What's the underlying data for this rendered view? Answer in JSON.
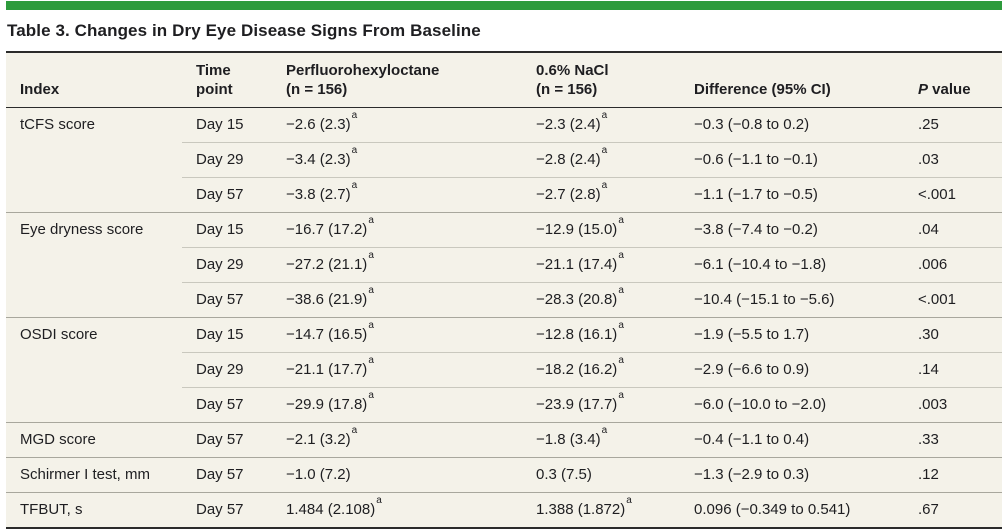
{
  "title": "Table 3. Changes in Dry Eye Disease Signs From Baseline",
  "columns": {
    "index": "Index",
    "time_line1": "Time",
    "time_line2": "point",
    "pfh_line1": "Perfluorohexyloctane",
    "pfh_line2": "(n = 156)",
    "nacl_line1": "0.6% NaCl",
    "nacl_line2": "(n = 156)",
    "difference": "Difference (95% CI)",
    "pvalue_italic": "P",
    "pvalue_rest": " value"
  },
  "rows": [
    {
      "index": "tCFS score",
      "time": "Day 15",
      "pfh": "−2.6 (2.3)",
      "pfh_sup": "a",
      "nacl": "−2.3 (2.4)",
      "nacl_sup": "a",
      "diff": "−0.3 (−0.8 to 0.2)",
      "p": ".25"
    },
    {
      "index": "",
      "time": "Day 29",
      "pfh": "−3.4 (2.3)",
      "pfh_sup": "a",
      "nacl": "−2.8 (2.4)",
      "nacl_sup": "a",
      "diff": "−0.6 (−1.1 to −0.1)",
      "p": ".03"
    },
    {
      "index": "",
      "time": "Day 57",
      "pfh": "−3.8 (2.7)",
      "pfh_sup": "a",
      "nacl": "−2.7 (2.8)",
      "nacl_sup": "a",
      "diff": "−1.1 (−1.7 to −0.5)",
      "p": "<.001"
    },
    {
      "index": "Eye dryness score",
      "time": "Day 15",
      "pfh": "−16.7 (17.2)",
      "pfh_sup": "a",
      "nacl": "−12.9 (15.0)",
      "nacl_sup": "a",
      "diff": "−3.8 (−7.4 to −0.2)",
      "p": ".04"
    },
    {
      "index": "",
      "time": "Day 29",
      "pfh": "−27.2 (21.1)",
      "pfh_sup": "a",
      "nacl": "−21.1 (17.4)",
      "nacl_sup": "a",
      "diff": "−6.1 (−10.4 to −1.8)",
      "p": ".006"
    },
    {
      "index": "",
      "time": "Day 57",
      "pfh": "−38.6 (21.9)",
      "pfh_sup": "a",
      "nacl": "−28.3 (20.8)",
      "nacl_sup": "a",
      "diff": "−10.4 (−15.1 to −5.6)",
      "p": "<.001"
    },
    {
      "index": "OSDI score",
      "time": "Day 15",
      "pfh": "−14.7 (16.5)",
      "pfh_sup": "a",
      "nacl": "−12.8 (16.1)",
      "nacl_sup": "a",
      "diff": "−1.9 (−5.5 to 1.7)",
      "p": ".30"
    },
    {
      "index": "",
      "time": "Day 29",
      "pfh": "−21.1 (17.7)",
      "pfh_sup": "a",
      "nacl": "−18.2 (16.2)",
      "nacl_sup": "a",
      "diff": "−2.9 (−6.6 to 0.9)",
      "p": ".14"
    },
    {
      "index": "",
      "time": "Day 57",
      "pfh": "−29.9 (17.8)",
      "pfh_sup": "a",
      "nacl": "−23.9 (17.7)",
      "nacl_sup": "a",
      "diff": "−6.0 (−10.0 to −2.0)",
      "p": ".003"
    },
    {
      "index": "MGD score",
      "time": "Day 57",
      "pfh": "−2.1 (3.2)",
      "pfh_sup": "a",
      "nacl": "−1.8 (3.4)",
      "nacl_sup": "a",
      "diff": "−0.4 (−1.1 to 0.4)",
      "p": ".33"
    },
    {
      "index": "Schirmer I test, mm",
      "time": "Day 57",
      "pfh": "−1.0 (7.2)",
      "pfh_sup": "",
      "nacl": "0.3 (7.5)",
      "nacl_sup": "",
      "diff": "−1.3 (−2.9 to 0.3)",
      "p": ".12"
    },
    {
      "index": "TFBUT, s",
      "time": "Day 57",
      "pfh": "1.484 (2.108)",
      "pfh_sup": "a",
      "nacl": "1.388 (1.872)",
      "nacl_sup": "a",
      "diff": "0.096 (−0.349 to 0.541)",
      "p": ".67"
    }
  ],
  "colors": {
    "accent-green": "#2e9b3c",
    "table-bg": "#f4f2e9",
    "rule-dark": "#2b2b2b",
    "rule-group": "#a8a79d",
    "rule-sub": "#c9c8be",
    "text": "#1e1e21"
  }
}
